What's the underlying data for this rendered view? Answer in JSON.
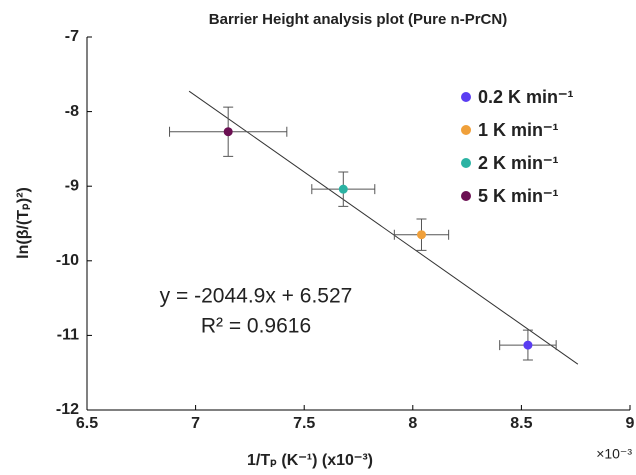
{
  "chart_data": {
    "type": "scatter",
    "title": "Barrier Height analysis plot (Pure n-PrCN)",
    "x_label": "1/Tₚ (K⁻¹) (x10⁻³)",
    "y_label": "ln(β/(Tₚ)²)",
    "x_multiplier": "×10⁻³",
    "annotations": [
      "y = -2044.9x + 6.527",
      "R² = 0.9616"
    ],
    "xlim": [
      6.5,
      9
    ],
    "xticks": [
      6.5,
      7,
      7.5,
      8,
      8.5,
      9
    ],
    "ylim": [
      -12,
      -7
    ],
    "yticks": [
      -12,
      -11,
      -10,
      -9,
      -8,
      -7
    ],
    "legend": "upper right",
    "fit_line": {
      "color": "#333333",
      "x": [
        6.97,
        8.76
      ],
      "y": [
        -7.726,
        -11.386
      ]
    },
    "series": [
      {
        "name": "0.2 K min⁻¹",
        "color": "#5a3df2",
        "x": [
          8.53
        ],
        "y": [
          -11.13
        ],
        "xerr": [
          0.13
        ],
        "yerr": [
          0.2
        ]
      },
      {
        "name": "1 K min⁻¹",
        "color": "#f0a03a",
        "x": [
          8.04
        ],
        "y": [
          -9.65
        ],
        "xerr": [
          0.125
        ],
        "yerr": [
          0.21
        ]
      },
      {
        "name": "2 K min⁻¹",
        "color": "#2bb3a3",
        "x": [
          7.68
        ],
        "y": [
          -9.04
        ],
        "xerr": [
          0.145
        ],
        "yerr": [
          0.23
        ]
      },
      {
        "name": "5 K min⁻¹",
        "color": "#6b0f52",
        "x": [
          7.15
        ],
        "y": [
          -8.27
        ],
        "xerr": [
          0.27
        ],
        "yerr": [
          0.33
        ]
      }
    ]
  }
}
